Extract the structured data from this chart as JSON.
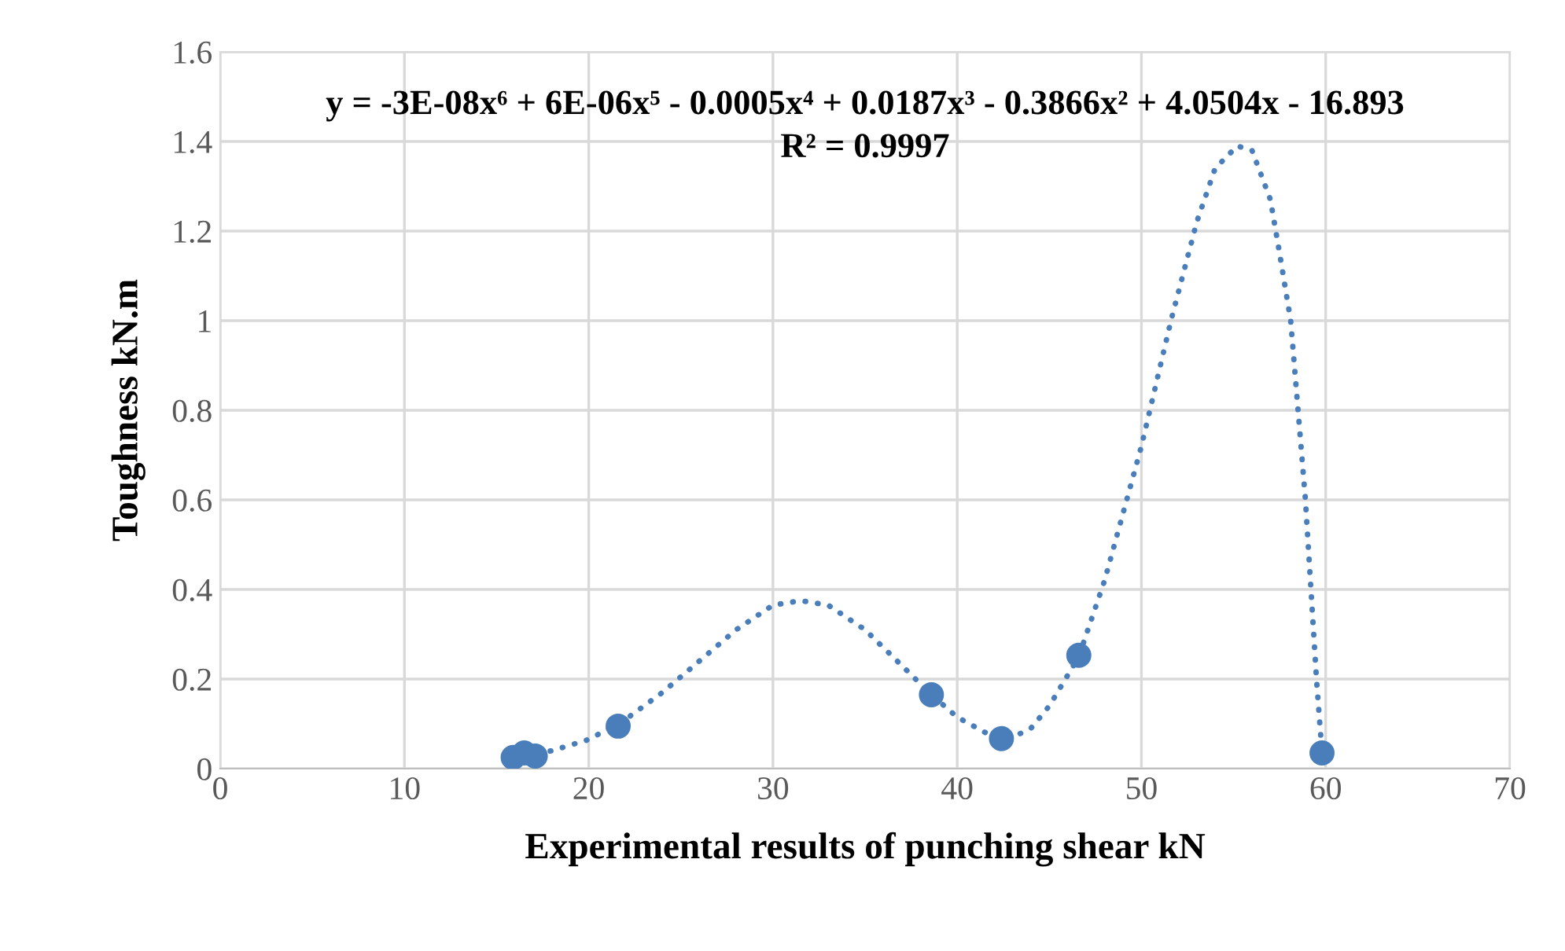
{
  "chart_data": {
    "type": "scatter",
    "xlabel": "Experimental results of punching shear kN",
    "ylabel": "Toughness kN.m",
    "annotations": [
      "y = -3E-08x⁶ + 6E-06x⁵ - 0.0005x⁴ + 0.0187x³ - 0.3866x² + 4.0504x - 16.893",
      "R² = 0.9997"
    ],
    "xlim": [
      0,
      70
    ],
    "xticks": [
      0,
      10,
      20,
      30,
      40,
      50,
      60,
      70
    ],
    "ylim": [
      0,
      1.6
    ],
    "yticks": [
      0,
      {
        "value": 0.2,
        "label": "0.2"
      },
      {
        "value": 0.4,
        "label": "0.4"
      },
      {
        "value": 0.6,
        "label": "0.6"
      },
      {
        "value": 0.8,
        "label": "0.8"
      },
      1,
      {
        "value": 1.2,
        "label": "1.2"
      },
      {
        "value": 1.4,
        "label": "1.4"
      },
      {
        "value": 1.6,
        "label": "1.6"
      }
    ],
    "grid": true,
    "legend": false,
    "series": [
      {
        "type": "line",
        "color": "#4a7ebb",
        "line_style": "dotted",
        "marker": "none",
        "x": [
          15.9,
          18,
          20,
          22,
          24,
          26,
          28,
          30,
          31.5,
          33,
          35,
          37,
          38.6,
          40,
          42,
          43,
          44,
          45,
          46.6,
          48,
          49.2,
          50,
          51.6,
          53,
          54,
          55.2,
          56,
          57,
          57.5,
          58.1,
          58.5,
          58.9,
          59.2,
          59.5,
          59.8
        ],
        "values": [
          0.025,
          0.04,
          0.065,
          0.11,
          0.17,
          0.24,
          0.31,
          0.365,
          0.375,
          0.365,
          0.31,
          0.23,
          0.165,
          0.115,
          0.07,
          0.07,
          0.09,
          0.14,
          0.25,
          0.42,
          0.6,
          0.72,
          1.0,
          1.22,
          1.34,
          1.39,
          1.38,
          1.27,
          1.15,
          1.0,
          0.8,
          0.6,
          0.4,
          0.2,
          0.035
        ]
      },
      {
        "color": "#4a7ebb",
        "marker": "circle",
        "x": [
          15.9,
          16.5,
          17.1,
          21.6,
          38.6,
          42.4,
          46.6,
          59.8
        ],
        "values": [
          0.025,
          0.035,
          0.028,
          0.095,
          0.165,
          0.067,
          0.253,
          0.035
        ]
      }
    ]
  }
}
